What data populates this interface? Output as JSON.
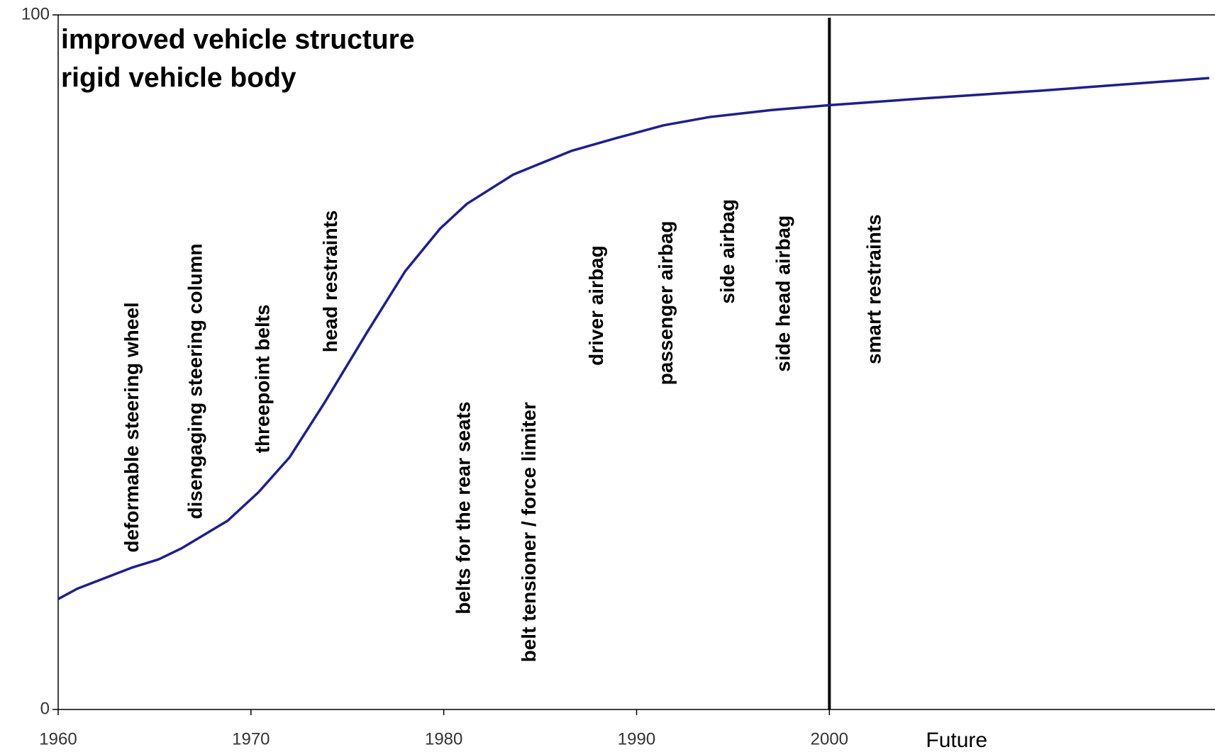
{
  "chart_data": {
    "type": "line",
    "title_lines": [
      "improved vehicle structure",
      "rigid vehicle body"
    ],
    "x": [
      1960,
      1961,
      1963.8,
      1965.2,
      1966.4,
      1968.8,
      1970.4,
      1972,
      1973.8,
      1976,
      1978,
      1979.8,
      1981.2,
      1983.6,
      1986.6,
      1989,
      1991.4,
      1993.8,
      1997,
      2000,
      2005,
      2011,
      2019.7
    ],
    "series": [
      {
        "color": "#1f1f8a",
        "values": [
          15.9,
          17.4,
          20.4,
          21.6,
          23.2,
          27.2,
          31.3,
          36.3,
          44.1,
          54.2,
          63.1,
          69.2,
          72.8,
          77.0,
          80.4,
          82.3,
          84.1,
          85.3,
          86.3,
          87.0,
          88.0,
          89.1,
          90.9
        ]
      }
    ],
    "xlim": [
      1960,
      2020
    ],
    "ylim": [
      0,
      100
    ],
    "xticks": [
      1960,
      1970,
      1980,
      1990,
      2000
    ],
    "yticks": [
      0,
      100
    ],
    "vline": 2000,
    "x_annotation": {
      "text": "Future",
      "x": 2006.6
    },
    "annotations": [
      {
        "text": "deformable steering wheel",
        "x": 1963.8,
        "y": 22.6
      },
      {
        "text": "disengaging steering column",
        "x": 1967.1,
        "y": 27.4
      },
      {
        "text": "threepoint belts",
        "x": 1970.6,
        "y": 36.9
      },
      {
        "text": "head restraints",
        "x": 1974.1,
        "y": 51.4
      },
      {
        "text": "belts for the rear seats",
        "x": 1981,
        "y": 13.7
      },
      {
        "text": "belt tensioner / force limiter",
        "x": 1984.4,
        "y": 6.8
      },
      {
        "text": "driver airbag",
        "x": 1987.9,
        "y": 49.5
      },
      {
        "text": "passenger airbag",
        "x": 1991.5,
        "y": 46.7
      },
      {
        "text": "side airbag",
        "x": 1994.7,
        "y": 58.4
      },
      {
        "text": "side head airbag",
        "x": 1997.6,
        "y": 48.6
      },
      {
        "text": "smart restraints",
        "x": 2002.3,
        "y": 49.7
      }
    ]
  }
}
